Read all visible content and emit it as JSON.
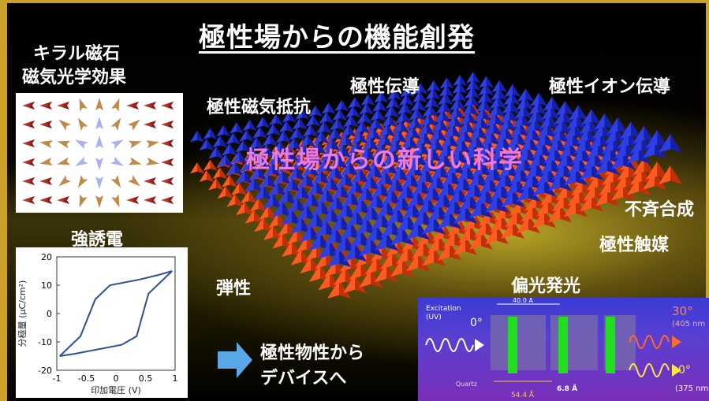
{
  "title": "極性場からの機能創発",
  "labels": {
    "chiral_line1": "キラル磁石",
    "chiral_line2": "磁気光学効果",
    "polar_conduction": "極性伝導",
    "polar_ion_conduction": "極性イオン伝導",
    "polar_magnetoresistance": "極性磁気抵抗",
    "new_science": "極性場からの新しい科学",
    "ferroelectric": "強誘電",
    "asymmetric_synthesis": "不斉合成",
    "polar_catalyst": "極性触媒",
    "elasticity": "弾性",
    "polarized_emission": "偏光発光",
    "to_devices_line1": "極性物性から",
    "to_devices_line2": "デバイスへ"
  },
  "hysteresis_plot": {
    "ylabel": "分極量 (μC/cm²)",
    "xlabel": "印加電圧 (V)",
    "x_ticks": [
      "-1",
      "-0.5",
      "0",
      "0.5",
      "1"
    ],
    "y_ticks": [
      "20",
      "10",
      "0",
      "-10",
      "-20"
    ],
    "xlim": [
      -1,
      1
    ],
    "ylim": [
      -20,
      20
    ]
  },
  "emission_diagram": {
    "excitation_line1": "Excitation",
    "excitation_line2": "(UV)",
    "angle_in": "0°",
    "angle_out_top": "30°",
    "wavelength_top": "(405 nm",
    "angle_out_bottom": "0°",
    "wavelength_bottom": "(375 nm",
    "quartz": "Quartz",
    "dim_spacing": "54.4 Å",
    "dim_thickness": "6.8 Å",
    "dim_top": "40.0 Å"
  },
  "colors": {
    "frame": "#c9a227",
    "pink_text": "#f07ad8",
    "blue_layer": "#2233dd",
    "red_layer": "#ff4a1a",
    "arrow": "#5aa7e8",
    "curve": "#2a4f9a",
    "green_molecules": "#22dd22"
  }
}
